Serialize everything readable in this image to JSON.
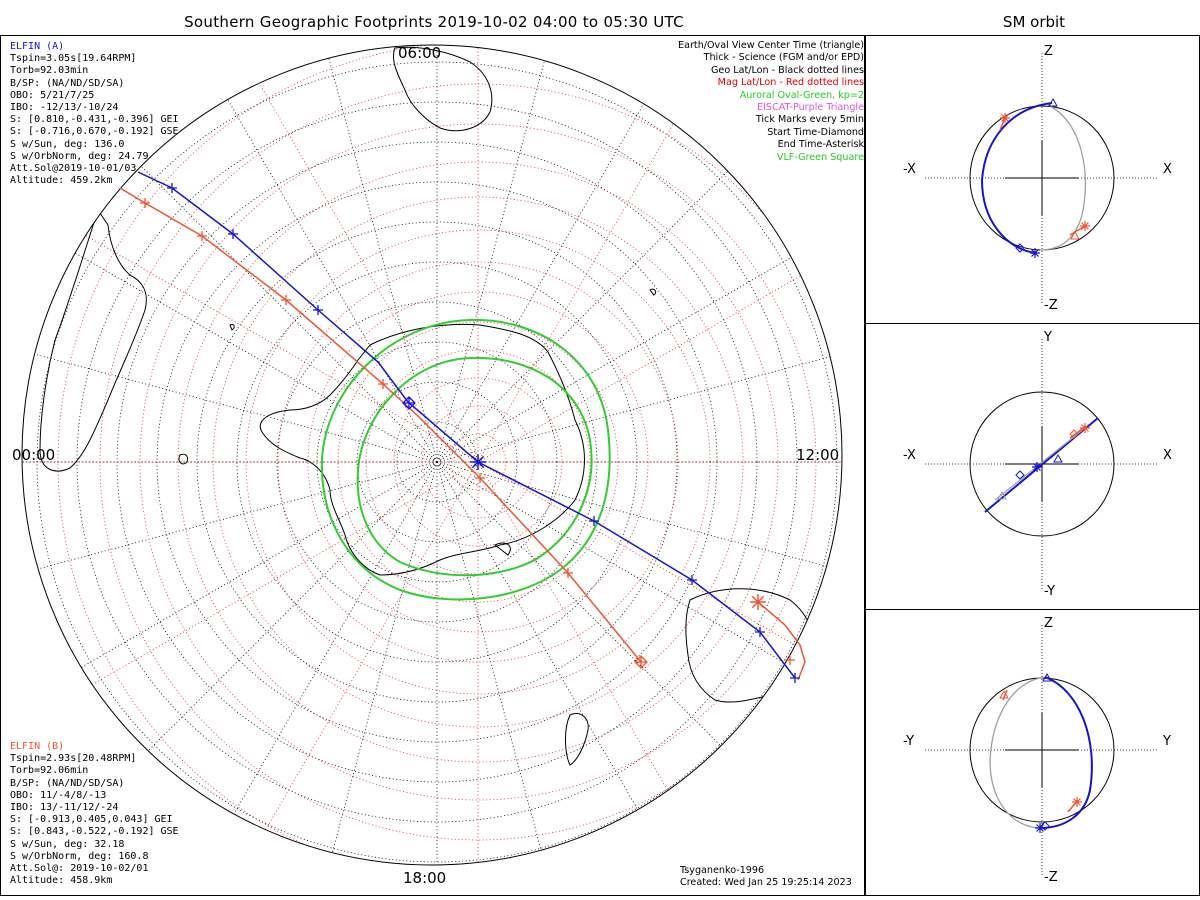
{
  "title": "Southern Geographic Footprints 2019-10-02 04:00 to 05:30 UTC",
  "side_title": "SM orbit",
  "elfin_a": {
    "name": "ELFIN (A)",
    "color": "#1414cc",
    "lines": [
      "Tspin=3.05s[19.64RPM]",
      "Torb=92.03min",
      "B/SP: (NA/ND/SD/SA)",
      "OBO: 5/21/7/25",
      "IBO: -12/13/-10/24",
      "S: [0.810,-0.431,-0.396] GEI",
      "S: [-0.716,0.670,-0.192] GSE",
      "S w/Sun, deg: 136.0",
      "S w/OrbNorm, deg: 24.79",
      "Att.Sol@2019-10-01/03",
      "Altitude: 459.2km"
    ]
  },
  "elfin_b": {
    "name": "ELFIN (B)",
    "color": "#ee5533",
    "lines": [
      "Tspin=2.93s[20.48RPM]",
      "Torb=92.06min",
      "B/SP: (NA/ND/SD/SA)",
      "OBO: 11/-4/8/-13",
      "IBO: 13/-11/12/-24",
      "S: [-0.913,0.405,0.043] GEI",
      "S: [0.843,-0.522,-0.192] GSE",
      "S w/Sun, deg: 32.18",
      "S w/OrbNorm, deg: 160.8",
      "Att.Sol@: 2019-10-02/01",
      "Altitude: 458.9km"
    ]
  },
  "legend": [
    {
      "text": "Earth/Oval View Center Time (triangle)",
      "color": "#000000"
    },
    {
      "text": "Thick - Science (FGM and/or EPD)",
      "color": "#000000"
    },
    {
      "text": "Geo Lat/Lon - Black dotted lines",
      "color": "#000000"
    },
    {
      "text": "Mag Lat/Lon - Red dotted lines",
      "color": "#dd0000"
    },
    {
      "text": "Auroral Oval-Green, kp=2",
      "color": "#22cc22"
    },
    {
      "text": "EISCAT-Purple Triangle",
      "color": "#dd55dd"
    },
    {
      "text": "Tick Marks every 5min",
      "color": "#000000"
    },
    {
      "text": "Start Time-Diamond",
      "color": "#000000"
    },
    {
      "text": "End Time-Asterisk",
      "color": "#000000"
    },
    {
      "text": "VLF-Green Square",
      "color": "#22cc22"
    }
  ],
  "hour_labels": {
    "top": "06:00",
    "left": "00:00",
    "right": "12:00",
    "bottom": "18:00"
  },
  "credit": [
    "Tsyganenko-1996",
    "Created: Wed Jan 25 19:25:14 2023"
  ],
  "sm_panels": [
    {
      "name": "xz",
      "top": "Z",
      "bottom": "-Z",
      "left": "-X",
      "right": "X"
    },
    {
      "name": "xy",
      "top": "Y",
      "bottom": "-Y",
      "left": "-X",
      "right": "X"
    },
    {
      "name": "yz",
      "top": "Z",
      "bottom": "-Z",
      "left": "-Y",
      "right": "Y"
    }
  ],
  "colors": {
    "blue": "#1414cc",
    "red": "#ee5533",
    "green": "#33cc33",
    "grid_red": "#dd2222",
    "gray": "#a0a0a0"
  }
}
